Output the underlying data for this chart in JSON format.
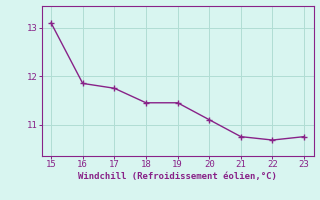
{
  "x": [
    15,
    16,
    17,
    18,
    19,
    20,
    21,
    22,
    23
  ],
  "y": [
    13.1,
    11.85,
    11.75,
    11.45,
    11.45,
    11.1,
    10.75,
    10.68,
    10.75
  ],
  "line_color": "#882288",
  "marker": "+",
  "marker_size": 4,
  "background_color": "#d8f5f0",
  "grid_color": "#b0ddd4",
  "xlabel": "Windchill (Refroidissement éolien,°C)",
  "xlabel_color": "#882288",
  "tick_color": "#882288",
  "spine_color": "#882288",
  "xlim_min": 14.7,
  "xlim_max": 23.3,
  "ylim_min": 10.35,
  "ylim_max": 13.45,
  "yticks": [
    11,
    12,
    13
  ],
  "xticks": [
    15,
    16,
    17,
    18,
    19,
    20,
    21,
    22,
    23
  ],
  "xlabel_fontsize": 6.5,
  "tick_fontsize": 6.5,
  "line_width": 1.0,
  "font_family": "monospace"
}
